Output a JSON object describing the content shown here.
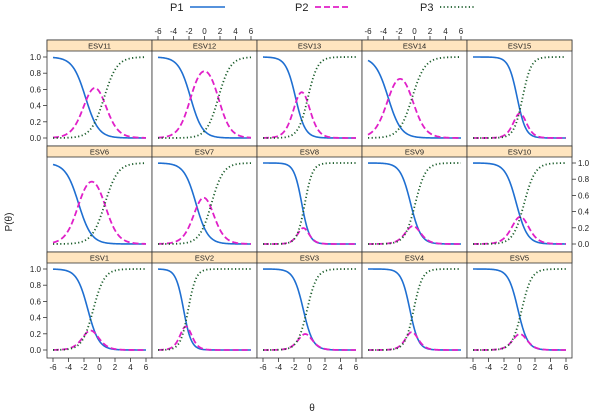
{
  "chart_data": {
    "type": "line",
    "title": "",
    "xlabel": "θ",
    "ylabel": "P(θ)",
    "xlim": [
      -6,
      6
    ],
    "ylim": [
      0,
      1
    ],
    "x_ticks": [
      "-6",
      "-4",
      "-2",
      "0",
      "2",
      "4",
      "6"
    ],
    "y_ticks": [
      "0.0",
      "0.2",
      "0.4",
      "0.6",
      "0.8",
      "1.0"
    ],
    "legend": {
      "position": "top",
      "entries": [
        {
          "name": "P1",
          "color": "#1f6fd1",
          "style": "solid"
        },
        {
          "name": "P2",
          "color": "#e020c8",
          "style": "dashed"
        },
        {
          "name": "P3",
          "color": "#1a5c2a",
          "style": "dotted"
        }
      ]
    },
    "series_description": "P1(θ)=1-logistic(a(θ-b1)); P3(θ)=logistic(a(θ-b2)); P2=1-P1-P3",
    "panels": [
      {
        "label": "ESV11",
        "a": 1.2,
        "b1": -1.8,
        "b2": 0.6
      },
      {
        "label": "ESV12",
        "a": 1.3,
        "b1": -1.8,
        "b2": 1.8
      },
      {
        "label": "ESV13",
        "a": 1.6,
        "b1": -1.8,
        "b2": -0.2
      },
      {
        "label": "ESV14",
        "a": 1.2,
        "b1": -3.4,
        "b2": -0.3
      },
      {
        "label": "ESV15",
        "a": 1.8,
        "b1": -0.3,
        "b2": 0.4
      },
      {
        "label": "ESV6",
        "a": 1.2,
        "b1": -2.7,
        "b2": 0.7
      },
      {
        "label": "ESV7",
        "a": 1.3,
        "b1": -1.1,
        "b2": 0.9
      },
      {
        "label": "ESV8",
        "a": 2.0,
        "b1": -1.0,
        "b2": -0.6
      },
      {
        "label": "ESV9",
        "a": 1.5,
        "b1": -0.5,
        "b2": 0.1
      },
      {
        "label": "ESV10",
        "a": 1.4,
        "b1": -0.4,
        "b2": 0.6
      },
      {
        "label": "ESV1",
        "a": 1.4,
        "b1": -1.5,
        "b2": -0.8
      },
      {
        "label": "ESV2",
        "a": 2.0,
        "b1": -2.7,
        "b2": -2.1
      },
      {
        "label": "ESV3",
        "a": 1.6,
        "b1": -0.8,
        "b2": -0.3
      },
      {
        "label": "ESV4",
        "a": 1.8,
        "b1": -0.6,
        "b2": -0.1
      },
      {
        "label": "ESV5",
        "a": 1.6,
        "b1": -0.2,
        "b2": 0.3
      }
    ]
  }
}
